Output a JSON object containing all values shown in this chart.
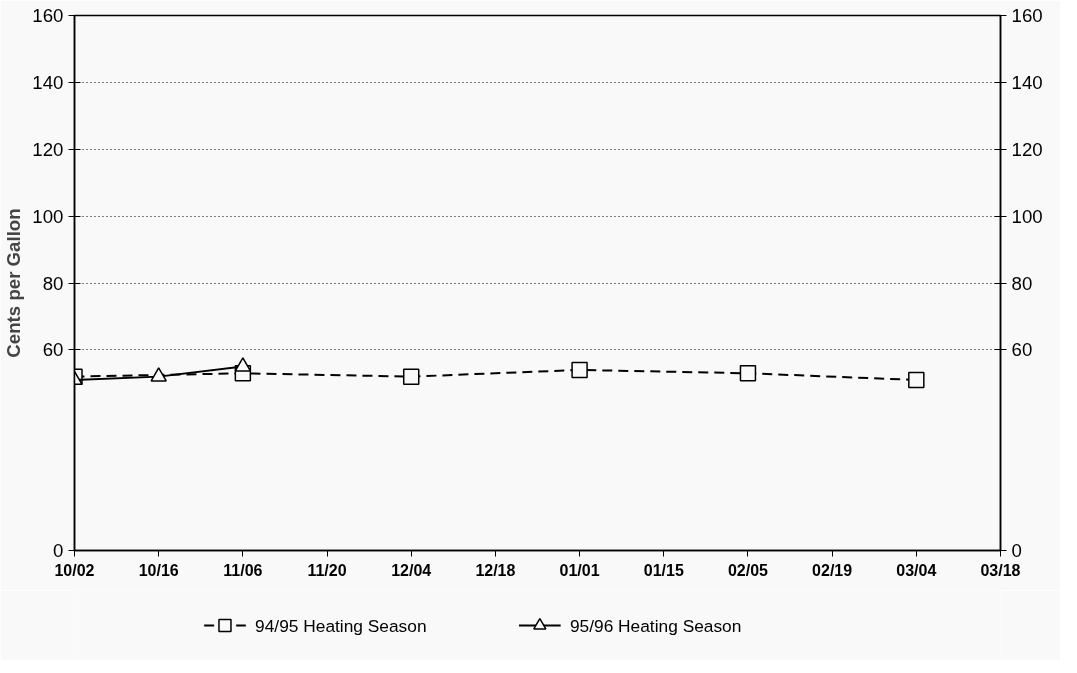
{
  "chart_data": {
    "type": "line",
    "ylabel": "Cents per Gallon",
    "categories": [
      "10/02",
      "10/16",
      "11/06",
      "11/20",
      "12/04",
      "12/18",
      "01/01",
      "01/15",
      "02/05",
      "02/19",
      "03/04",
      "03/18"
    ],
    "series": [
      {
        "name": "94/95 Heating Season",
        "color": "#000000",
        "marker": "square",
        "line_style": "dashed",
        "values": [
          52,
          null,
          53,
          null,
          52,
          null,
          54,
          null,
          53,
          null,
          51,
          null
        ]
      },
      {
        "name": "95/96 Heating Season",
        "color": "#000000",
        "marker": "triangle",
        "line_style": "solid",
        "values": [
          51,
          52,
          55,
          null,
          null,
          null,
          null,
          null,
          null,
          null,
          null,
          null
        ]
      }
    ],
    "ylim": [
      0,
      160
    ],
    "yticks": [
      0,
      60,
      80,
      100,
      120,
      140,
      160
    ],
    "y2lim": [
      0,
      160
    ],
    "y2ticks": [
      0,
      60,
      80,
      100,
      120,
      140,
      160
    ],
    "grid": "y",
    "legend": "bottom"
  }
}
